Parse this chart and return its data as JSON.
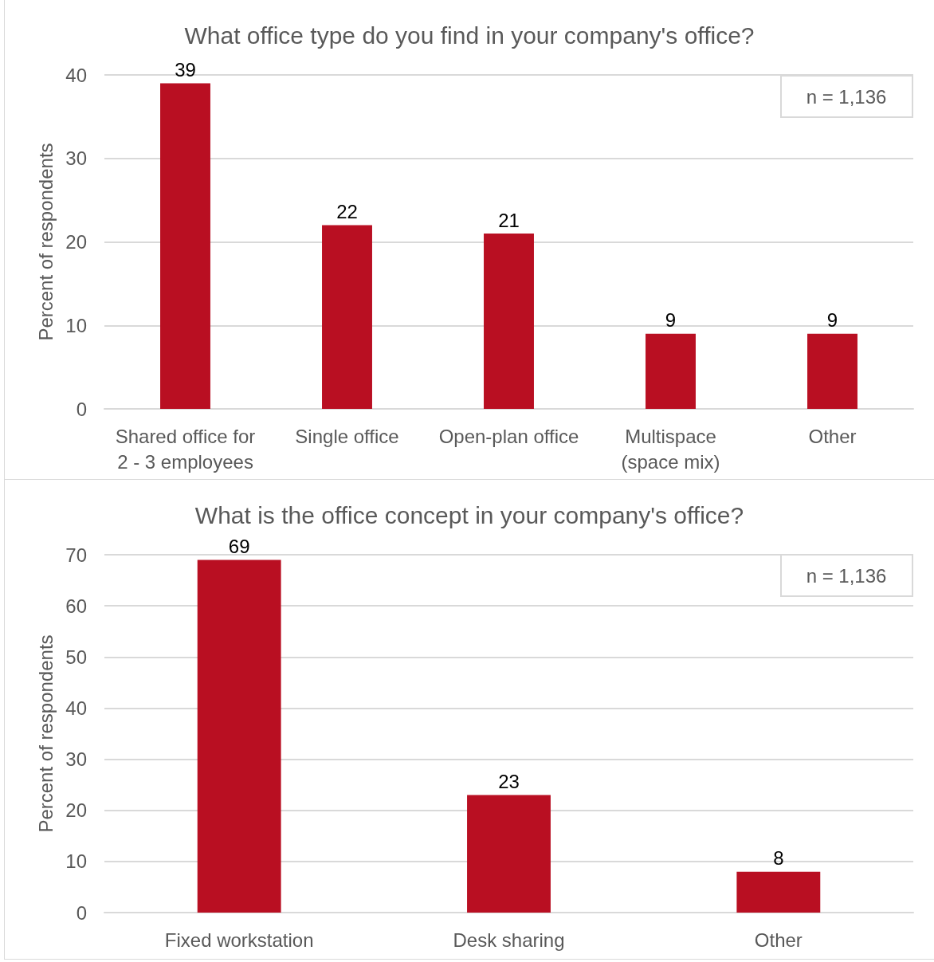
{
  "chart_data": [
    {
      "type": "bar",
      "title": "What office type do you find in your company's office?",
      "ylabel": "Percent of respondents",
      "categories": [
        "Shared office for\n2 - 3 employees",
        "Single office",
        "Open-plan office",
        "Multispace\n(space mix)",
        "Other"
      ],
      "values": [
        39,
        22,
        21,
        9,
        9
      ],
      "color": "#b90f22",
      "ylim": [
        0,
        40
      ],
      "yticks": [
        0,
        10,
        20,
        30,
        40
      ],
      "grid": "y",
      "data_labels": true,
      "annotations": [
        "n = 1,136"
      ]
    },
    {
      "type": "bar",
      "title": "What is the office concept in your company's office?",
      "ylabel": "Percent of respondents",
      "categories": [
        "Fixed workstation",
        "Desk sharing",
        "Other"
      ],
      "values": [
        69,
        23,
        8
      ],
      "color": "#b90f22",
      "ylim": [
        0,
        70
      ],
      "yticks": [
        0,
        10,
        20,
        30,
        40,
        50,
        60,
        70
      ],
      "grid": "y",
      "data_labels": true,
      "annotations": [
        "n = 1,136"
      ]
    }
  ]
}
